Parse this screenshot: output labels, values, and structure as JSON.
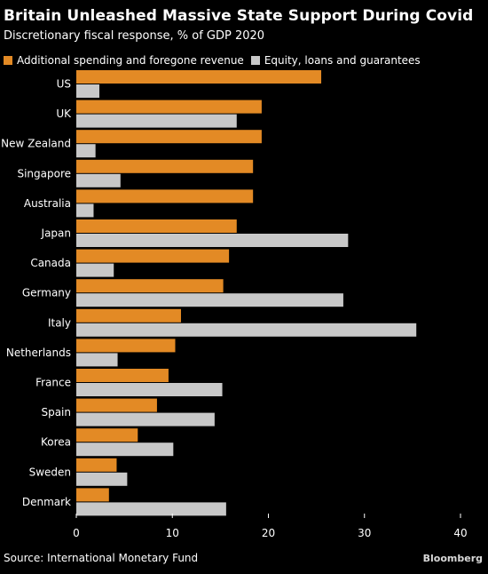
{
  "title": "Britain Unleashed Massive State Support During Covid",
  "subtitle": "Discretionary fiscal response, % of GDP 2020",
  "source": "Source: International Monetary Fund",
  "brand": "Bloomberg",
  "colors": {
    "background": "#000000",
    "series1": "#e38a25",
    "series2": "#c8c8c8",
    "text": "#ffffff",
    "grid": "#555555"
  },
  "chart_data": {
    "type": "bar",
    "orientation": "horizontal",
    "categories": [
      "US",
      "UK",
      "New Zealand",
      "Singapore",
      "Australia",
      "Japan",
      "Canada",
      "Germany",
      "Italy",
      "Netherlands",
      "France",
      "Spain",
      "Korea",
      "Sweden",
      "Denmark"
    ],
    "series": [
      {
        "name": "Additional spending and foregone revenue",
        "values": [
          25.5,
          19.3,
          19.3,
          18.4,
          18.4,
          16.7,
          15.9,
          15.3,
          10.9,
          10.3,
          9.6,
          8.4,
          6.4,
          4.2,
          3.4
        ]
      },
      {
        "name": "Equity, loans and guarantees",
        "values": [
          2.4,
          16.7,
          2.0,
          4.6,
          1.8,
          28.3,
          3.9,
          27.8,
          35.4,
          4.3,
          15.2,
          14.4,
          10.1,
          5.3,
          15.6
        ]
      }
    ],
    "xlim": [
      0,
      40
    ],
    "xticks": [
      0,
      10,
      20,
      30,
      40
    ],
    "grid": false,
    "legend_position": "top"
  }
}
